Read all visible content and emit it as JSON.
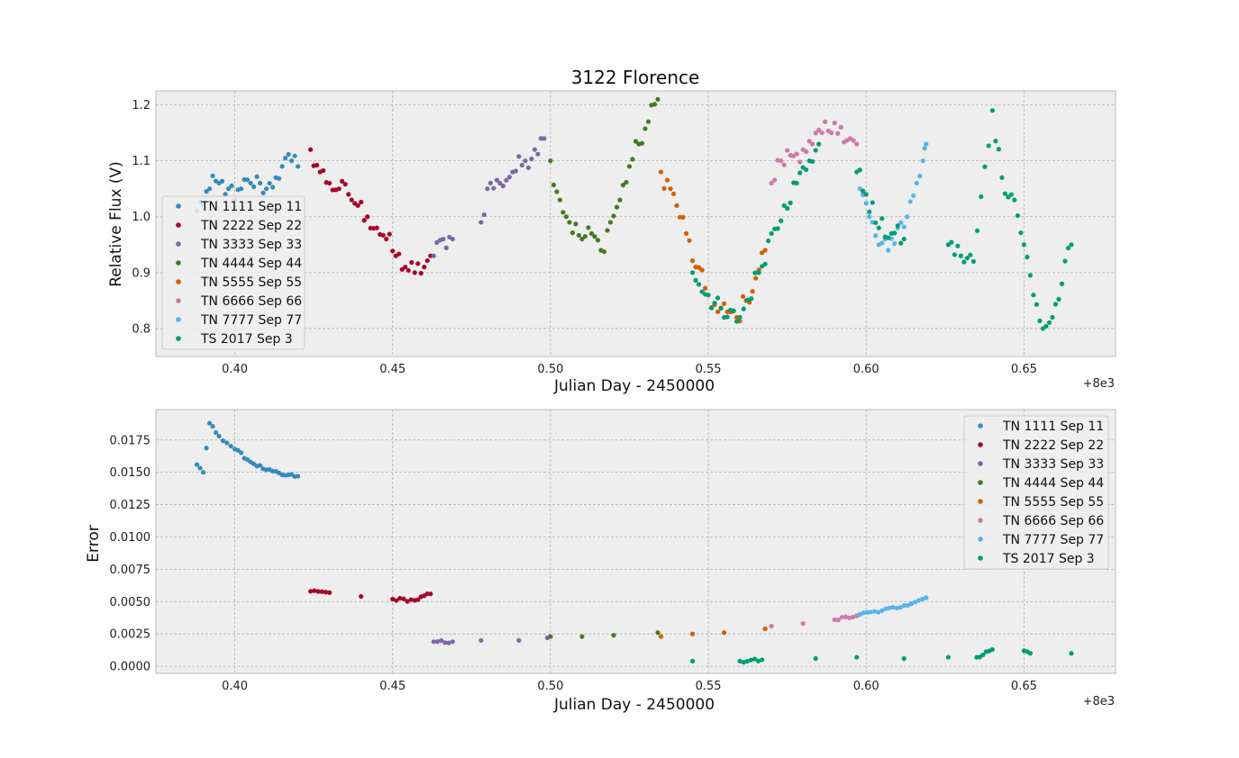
{
  "chart_data": [
    {
      "type": "scatter",
      "title": "3122 Florence",
      "xlabel": "Julian Day  - 2450000",
      "ylabel": "Relative Flux (V)",
      "x_offset_label": "+8e3",
      "xlim": [
        8000.375,
        8000.679
      ],
      "ylim": [
        0.75,
        1.225
      ],
      "xticks": [
        8000.4,
        8000.45,
        8000.5,
        8000.55,
        8000.6,
        8000.65
      ],
      "xtick_labels": [
        "0.40",
        "0.45",
        "0.50",
        "0.55",
        "0.60",
        "0.65"
      ],
      "yticks": [
        0.8,
        0.9,
        1.0,
        1.1,
        1.2
      ],
      "ytick_labels": [
        "0.8",
        "0.9",
        "1.0",
        "1.1",
        "1.2"
      ],
      "grid": true,
      "legend_position": "lower-left",
      "series": [
        {
          "name": "TN 1111 Sep 11",
          "color": "#348ABD",
          "points": [
            [
              8000.388,
              1.01
            ],
            [
              8000.392,
              1.05
            ],
            [
              8000.395,
              1.06
            ],
            [
              8000.398,
              1.05
            ],
            [
              8000.4,
              1.03
            ],
            [
              8000.402,
              1.05
            ],
            [
              8000.405,
              1.06
            ],
            [
              8000.408,
              1.06
            ],
            [
              8000.41,
              1.05
            ],
            [
              8000.413,
              1.07
            ],
            [
              8000.415,
              1.09
            ],
            [
              8000.418,
              1.1
            ],
            [
              8000.42,
              1.09
            ]
          ]
        },
        {
          "name": "TN 2222 Sep 22",
          "color": "#A60628",
          "points": [
            [
              8000.424,
              1.12
            ],
            [
              8000.427,
              1.08
            ],
            [
              8000.43,
              1.06
            ],
            [
              8000.433,
              1.05
            ],
            [
              8000.436,
              1.04
            ],
            [
              8000.439,
              1.02
            ],
            [
              8000.442,
              1.0
            ],
            [
              8000.445,
              0.98
            ],
            [
              8000.448,
              0.96
            ],
            [
              8000.451,
              0.93
            ],
            [
              8000.454,
              0.91
            ],
            [
              8000.457,
              0.9
            ],
            [
              8000.46,
              0.91
            ],
            [
              8000.462,
              0.93
            ]
          ]
        },
        {
          "name": "TN 3333 Sep 33",
          "color": "#7A68A6",
          "points": [
            [
              8000.463,
              0.93
            ],
            [
              8000.466,
              0.96
            ],
            [
              8000.469,
              0.96
            ],
            [
              8000.478,
              0.99
            ],
            [
              8000.48,
              1.05
            ],
            [
              8000.484,
              1.06
            ],
            [
              8000.488,
              1.08
            ],
            [
              8000.492,
              1.1
            ],
            [
              8000.495,
              1.12
            ],
            [
              8000.498,
              1.14
            ]
          ]
        },
        {
          "name": "TN 4444 Sep 44",
          "color": "#467821",
          "points": [
            [
              8000.5,
              1.1
            ],
            [
              8000.503,
              1.03
            ],
            [
              8000.506,
              0.99
            ],
            [
              8000.51,
              0.96
            ],
            [
              8000.513,
              0.97
            ],
            [
              8000.516,
              0.94
            ],
            [
              8000.519,
              0.99
            ],
            [
              8000.522,
              1.03
            ],
            [
              8000.525,
              1.09
            ],
            [
              8000.528,
              1.13
            ],
            [
              8000.531,
              1.17
            ],
            [
              8000.534,
              1.21
            ]
          ]
        },
        {
          "name": "TN 5555 Sep 55",
          "color": "#D55E00",
          "points": [
            [
              8000.535,
              1.08
            ],
            [
              8000.538,
              1.05
            ],
            [
              8000.54,
              1.02
            ],
            [
              8000.543,
              0.97
            ],
            [
              8000.546,
              0.91
            ],
            [
              8000.55,
              0.86
            ],
            [
              8000.553,
              0.83
            ],
            [
              8000.556,
              0.83
            ],
            [
              8000.559,
              0.82
            ],
            [
              8000.562,
              0.85
            ],
            [
              8000.565,
              0.89
            ],
            [
              8000.568,
              0.94
            ]
          ]
        },
        {
          "name": "TN 6666 Sep 66",
          "color": "#CC79A7",
          "points": [
            [
              8000.57,
              1.06
            ],
            [
              8000.573,
              1.1
            ],
            [
              8000.576,
              1.11
            ],
            [
              8000.58,
              1.12
            ],
            [
              8000.583,
              1.13
            ],
            [
              8000.586,
              1.15
            ],
            [
              8000.589,
              1.15
            ],
            [
              8000.592,
              1.16
            ],
            [
              8000.595,
              1.14
            ],
            [
              8000.597,
              1.13
            ]
          ]
        },
        {
          "name": "TN 7777 Sep 77",
          "color": "#56B4E9",
          "points": [
            [
              8000.598,
              1.05
            ],
            [
              8000.601,
              1.0
            ],
            [
              8000.604,
              0.95
            ],
            [
              8000.607,
              0.94
            ],
            [
              8000.61,
              0.98
            ],
            [
              8000.613,
              1.0
            ],
            [
              8000.616,
              1.06
            ],
            [
              8000.618,
              1.1
            ],
            [
              8000.619,
              1.13
            ]
          ]
        },
        {
          "name": "TS 2017 Sep 3",
          "color": "#009E73",
          "points": [
            [
              8000.545,
              0.9
            ],
            [
              8000.55,
              0.86
            ],
            [
              8000.555,
              0.82
            ],
            [
              8000.56,
              0.82
            ],
            [
              8000.566,
              0.9
            ],
            [
              8000.57,
              0.97
            ],
            [
              8000.574,
              1.02
            ],
            [
              8000.578,
              1.06
            ],
            [
              8000.582,
              1.1
            ],
            [
              8000.585,
              1.13
            ],
            [
              8000.597,
              1.08
            ],
            [
              8000.6,
              1.04
            ],
            [
              8000.604,
              0.98
            ],
            [
              8000.608,
              0.97
            ],
            [
              8000.612,
              0.96
            ],
            [
              8000.626,
              0.95
            ],
            [
              8000.63,
              0.93
            ],
            [
              8000.634,
              0.92
            ],
            [
              8000.64,
              1.19
            ],
            [
              8000.643,
              1.07
            ],
            [
              8000.647,
              1.03
            ],
            [
              8000.65,
              0.95
            ],
            [
              8000.653,
              0.86
            ],
            [
              8000.656,
              0.8
            ],
            [
              8000.659,
              0.82
            ],
            [
              8000.662,
              0.88
            ],
            [
              8000.665,
              0.95
            ]
          ]
        }
      ]
    },
    {
      "type": "scatter",
      "title": "",
      "xlabel": "Julian Day - 2450000",
      "ylabel": "Error",
      "x_offset_label": "+8e3",
      "xlim": [
        8000.375,
        8000.679
      ],
      "ylim": [
        -0.00055,
        0.01985
      ],
      "xticks": [
        8000.4,
        8000.45,
        8000.5,
        8000.55,
        8000.6,
        8000.65
      ],
      "xtick_labels": [
        "0.40",
        "0.45",
        "0.50",
        "0.55",
        "0.60",
        "0.65"
      ],
      "yticks": [
        0.0,
        0.0025,
        0.005,
        0.0075,
        0.01,
        0.0125,
        0.015,
        0.0175
      ],
      "ytick_labels": [
        "0.0000",
        "0.0025",
        "0.0050",
        "0.0075",
        "0.0100",
        "0.0125",
        "0.0150",
        "0.0175"
      ],
      "grid": true,
      "legend_position": "upper-right",
      "series": [
        {
          "name": "TN 1111 Sep 11",
          "color": "#348ABD",
          "points": [
            [
              8000.388,
              0.0156
            ],
            [
              8000.39,
              0.015
            ],
            [
              8000.392,
              0.0188
            ],
            [
              8000.395,
              0.0178
            ],
            [
              8000.4,
              0.0168
            ],
            [
              8000.405,
              0.0158
            ],
            [
              8000.41,
              0.0152
            ],
            [
              8000.415,
              0.0148
            ],
            [
              8000.42,
              0.0147
            ]
          ]
        },
        {
          "name": "TN 2222 Sep 22",
          "color": "#A60628",
          "points": [
            [
              8000.424,
              0.0058
            ],
            [
              8000.43,
              0.0057
            ],
            [
              8000.44,
              0.0054
            ],
            [
              8000.45,
              0.0052
            ],
            [
              8000.457,
              0.0051
            ],
            [
              8000.462,
              0.0056
            ]
          ]
        },
        {
          "name": "TN 3333 Sep 33",
          "color": "#7A68A6",
          "points": [
            [
              8000.463,
              0.0019
            ],
            [
              8000.469,
              0.0019
            ],
            [
              8000.478,
              0.002
            ],
            [
              8000.49,
              0.002
            ],
            [
              8000.499,
              0.0022
            ]
          ]
        },
        {
          "name": "TN 4444 Sep 44",
          "color": "#467821",
          "points": [
            [
              8000.5,
              0.0023
            ],
            [
              8000.51,
              0.0023
            ],
            [
              8000.52,
              0.0024
            ],
            [
              8000.534,
              0.0026
            ]
          ]
        },
        {
          "name": "TN 5555 Sep 55",
          "color": "#D55E00",
          "points": [
            [
              8000.535,
              0.0023
            ],
            [
              8000.545,
              0.0025
            ],
            [
              8000.555,
              0.0026
            ],
            [
              8000.568,
              0.0029
            ]
          ]
        },
        {
          "name": "TN 6666 Sep 66",
          "color": "#CC79A7",
          "points": [
            [
              8000.57,
              0.0031
            ],
            [
              8000.58,
              0.0033
            ],
            [
              8000.59,
              0.0036
            ],
            [
              8000.597,
              0.0039
            ]
          ]
        },
        {
          "name": "TN 7777 Sep 77",
          "color": "#56B4E9",
          "points": [
            [
              8000.598,
              0.004
            ],
            [
              8000.605,
              0.0043
            ],
            [
              8000.612,
              0.0047
            ],
            [
              8000.619,
              0.0053
            ]
          ]
        },
        {
          "name": "TS 2017 Sep 3",
          "color": "#009E73",
          "points": [
            [
              8000.545,
              0.0004
            ],
            [
              8000.56,
              0.0004
            ],
            [
              8000.567,
              0.0005
            ],
            [
              8000.584,
              0.0006
            ],
            [
              8000.597,
              0.0007
            ],
            [
              8000.612,
              0.0006
            ],
            [
              8000.626,
              0.0007
            ],
            [
              8000.635,
              0.0007
            ],
            [
              8000.64,
              0.0013
            ],
            [
              8000.65,
              0.0012
            ],
            [
              8000.652,
              0.001
            ],
            [
              8000.665,
              0.001
            ]
          ]
        }
      ]
    }
  ]
}
